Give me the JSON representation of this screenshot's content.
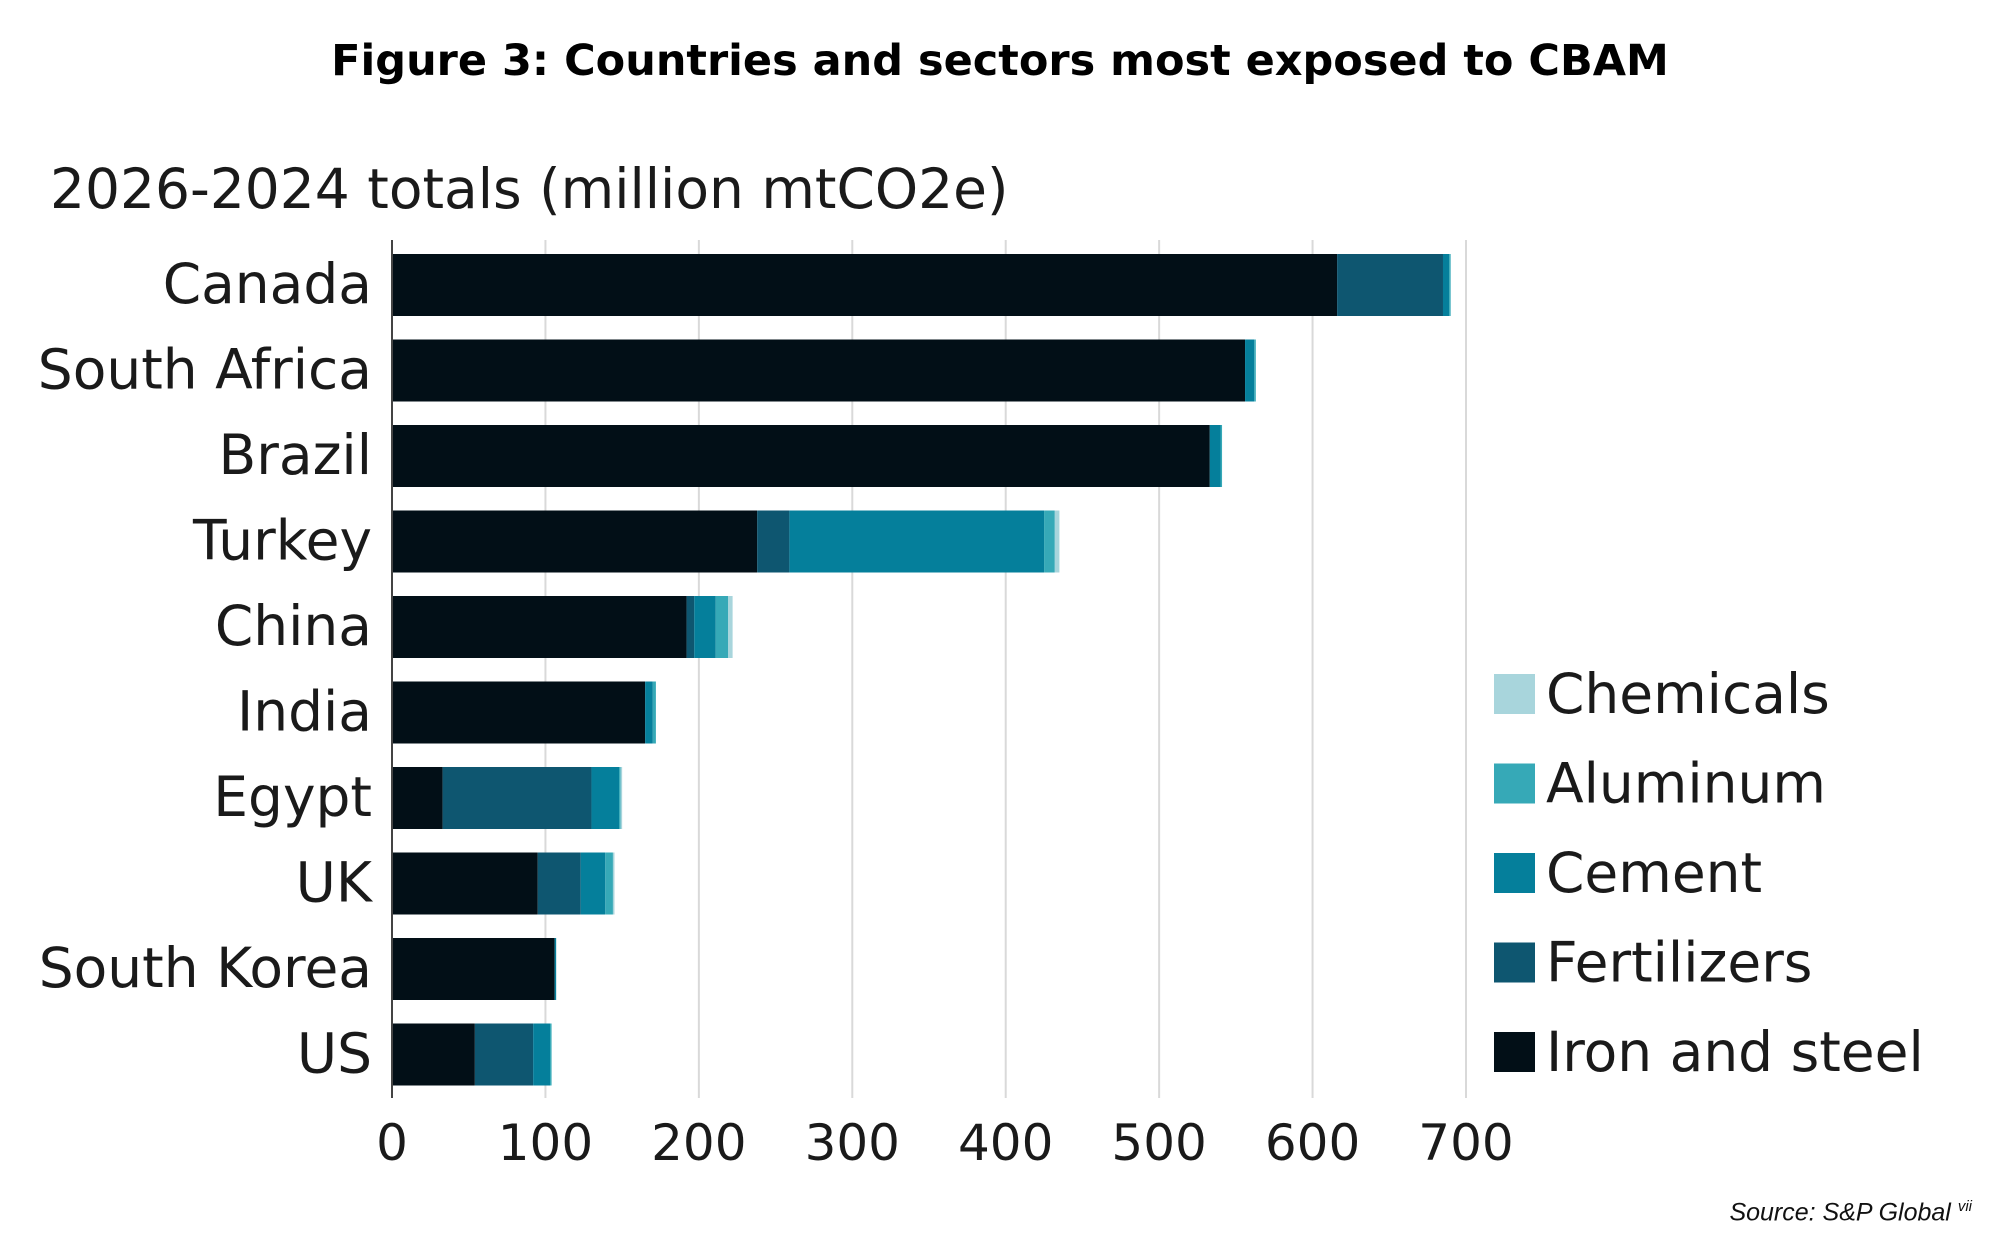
{
  "figure_title": "Figure 3: Countries and sectors most exposed to CBAM",
  "source": "Source: S&P Global",
  "source_note": "vii",
  "chart_data": {
    "type": "bar",
    "orientation": "horizontal",
    "stacked": true,
    "title": "2026-2024 totals (million mtCO2e)",
    "xlabel": "",
    "ylabel": "",
    "xlim": [
      0,
      700
    ],
    "xticks": [
      "0",
      "100",
      "200",
      "300",
      "400",
      "500",
      "600",
      "700"
    ],
    "grid": "vertical",
    "legend_position": "right",
    "categories": [
      "Canada",
      "South Africa",
      "Brazil",
      "Turkey",
      "China",
      "India",
      "Egypt",
      "UK",
      "South Korea",
      "US"
    ],
    "series": [
      {
        "name": "Iron and steel",
        "color": "#020f17",
        "values": [
          616,
          556,
          533,
          238,
          192,
          165,
          33,
          95,
          106,
          54
        ]
      },
      {
        "name": "Fertilizers",
        "color": "#0e5670",
        "values": [
          69,
          0,
          0,
          21,
          5,
          0,
          97,
          28,
          0,
          38
        ]
      },
      {
        "name": "Cement",
        "color": "#057f9b",
        "values": [
          4,
          6,
          7,
          166,
          14,
          5,
          18,
          16,
          1,
          11
        ]
      },
      {
        "name": "Aluminum",
        "color": "#36a9b7",
        "values": [
          1,
          1,
          1,
          7,
          8,
          2,
          1,
          5,
          0,
          1
        ]
      },
      {
        "name": "Chemicals",
        "color": "#a8d5dc",
        "values": [
          0,
          0,
          0,
          3,
          3,
          0,
          1,
          1,
          0,
          0
        ]
      }
    ],
    "legend_order": [
      "Chemicals",
      "Aluminum",
      "Cement",
      "Fertilizers",
      "Iron and steel"
    ]
  }
}
